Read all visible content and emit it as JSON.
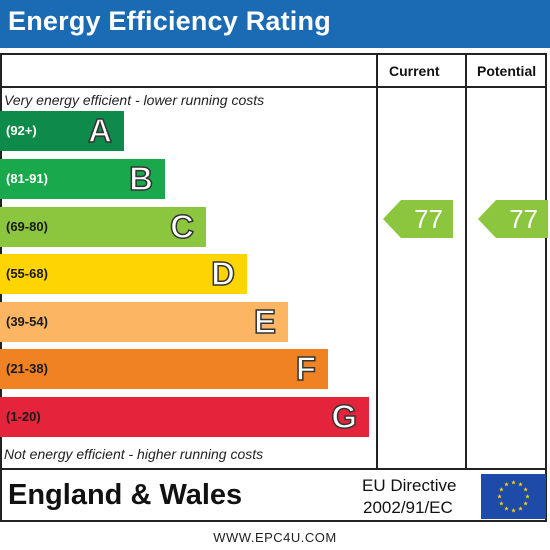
{
  "header": {
    "title": "Energy Efficiency Rating",
    "color": "#1a6ab4"
  },
  "columns": {
    "current": "Current",
    "potential": "Potential"
  },
  "notes": {
    "top": "Very energy efficient - lower running costs",
    "bottom": "Not energy efficient - higher running costs"
  },
  "bands": [
    {
      "range": "(92+)",
      "letter": "A",
      "color": "#0e8a4a",
      "text_color": "#ffffff"
    },
    {
      "range": "(81-91)",
      "letter": "B",
      "color": "#1aa84c",
      "text_color": "#ffffff"
    },
    {
      "range": "(69-80)",
      "letter": "C",
      "color": "#8cc63f",
      "text_color": "#1a1a1a"
    },
    {
      "range": "(55-68)",
      "letter": "D",
      "color": "#ffd500",
      "text_color": "#1a1a1a"
    },
    {
      "range": "(39-54)",
      "letter": "E",
      "color": "#fbb563",
      "text_color": "#1a1a1a"
    },
    {
      "range": "(21-38)",
      "letter": "F",
      "color": "#f08224",
      "text_color": "#1a1a1a"
    },
    {
      "range": "(1-20)",
      "letter": "G",
      "color": "#e4243a",
      "text_color": "#1a1a1a"
    }
  ],
  "ratings": {
    "current": {
      "value": "77",
      "color": "#8cc63f"
    },
    "potential": {
      "value": "77",
      "color": "#8cc63f"
    }
  },
  "footer": {
    "region": "England & Wales",
    "directive_line1": "EU Directive",
    "directive_line2": "2002/91/EC",
    "flag_color": "#1e4aa8",
    "star_color": "#ffd500"
  },
  "website": "WWW.EPC4U.COM"
}
